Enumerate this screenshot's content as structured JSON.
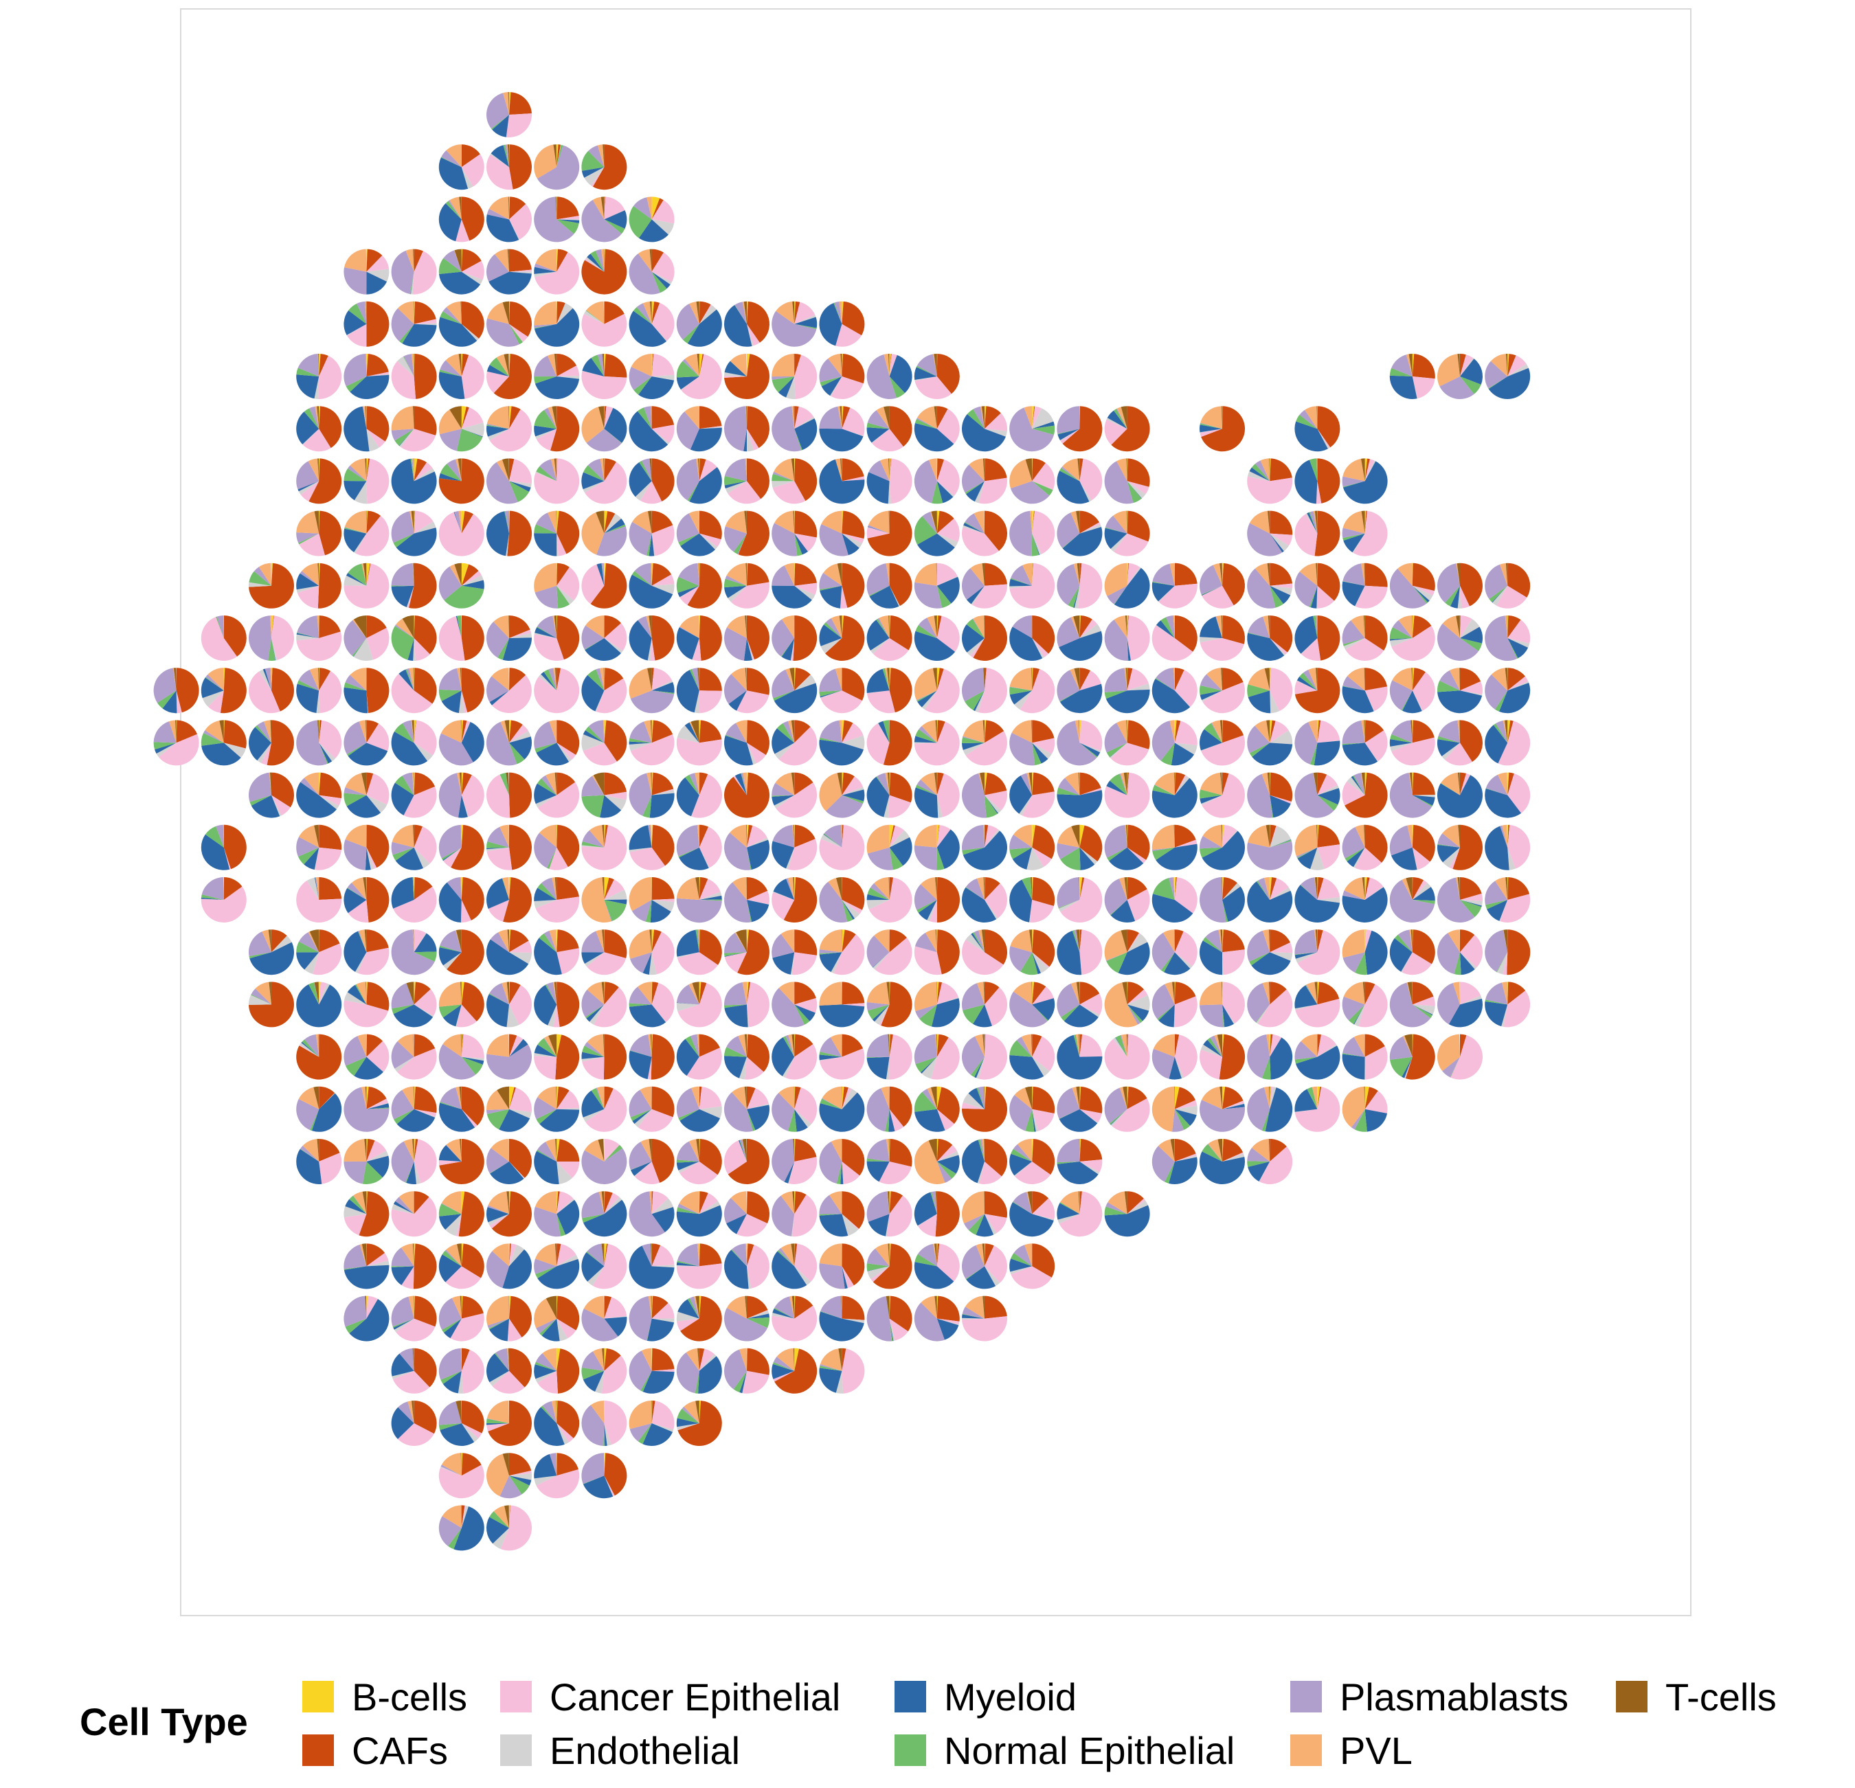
{
  "chart_data": {
    "type": "pie-scatter",
    "description_visible": "Spatial spot grid; each spot is a pie of cell type proportions",
    "legend_title": "Cell Type",
    "legend_position": "bottom",
    "categories": [
      "B-cells",
      "CAFs",
      "Cancer Epithelial",
      "Endothelial",
      "Myeloid",
      "Normal Epithelial",
      "Plasmablasts",
      "PVL",
      "T-cells"
    ],
    "colors": {
      "B-cells": "#F9D423",
      "CAFs": "#CC4A0D",
      "Cancer Epithelial": "#F7BEDC",
      "Endothelial": "#D3D3D3",
      "Myeloid": "#2C68A8",
      "Normal Epithelial": "#70BE6A",
      "Plasmablasts": "#B09ECC",
      "PVL": "#F8AF72",
      "T-cells": "#98621A"
    },
    "grid": false,
    "rows": [
      {
        "row": 0,
        "cols": [
          [
            12,
            12
          ]
        ]
      },
      {
        "row": 1,
        "cols": [
          [
            11,
            14
          ]
        ]
      },
      {
        "row": 2,
        "cols": [
          [
            11,
            15
          ]
        ]
      },
      {
        "row": 3,
        "cols": [
          [
            9,
            15
          ]
        ]
      },
      {
        "row": 4,
        "cols": [
          [
            9,
            19
          ]
        ]
      },
      {
        "row": 5,
        "cols": [
          [
            8,
            21
          ],
          [
            31,
            33
          ]
        ]
      },
      {
        "row": 6,
        "cols": [
          [
            8,
            11
          ],
          [
            12,
            15
          ],
          [
            16,
            25
          ],
          [
            27,
            27
          ],
          [
            29,
            29
          ]
        ]
      },
      {
        "row": 7,
        "cols": [
          [
            8,
            25
          ],
          [
            28,
            30
          ]
        ]
      },
      {
        "row": 8,
        "cols": [
          [
            8,
            25
          ],
          [
            28,
            30
          ]
        ]
      },
      {
        "row": 9,
        "cols": [
          [
            7,
            11
          ],
          [
            13,
            33
          ]
        ]
      },
      {
        "row": 10,
        "cols": [
          [
            6,
            33
          ]
        ]
      },
      {
        "row": 11,
        "cols": [
          [
            5,
            33
          ]
        ]
      },
      {
        "row": 12,
        "cols": [
          [
            5,
            33
          ]
        ]
      },
      {
        "row": 13,
        "cols": [
          [
            7,
            33
          ]
        ]
      },
      {
        "row": 14,
        "cols": [
          [
            6,
            6
          ],
          [
            8,
            33
          ]
        ]
      },
      {
        "row": 15,
        "cols": [
          [
            6,
            6
          ],
          [
            8,
            33
          ]
        ]
      },
      {
        "row": 16,
        "cols": [
          [
            7,
            19
          ],
          [
            20,
            33
          ]
        ]
      },
      {
        "row": 17,
        "cols": [
          [
            7,
            33
          ]
        ]
      },
      {
        "row": 18,
        "cols": [
          [
            8,
            32
          ]
        ]
      },
      {
        "row": 19,
        "cols": [
          [
            8,
            30
          ]
        ]
      },
      {
        "row": 20,
        "cols": [
          [
            8,
            24
          ],
          [
            26,
            28
          ]
        ]
      },
      {
        "row": 21,
        "cols": [
          [
            9,
            25
          ]
        ]
      },
      {
        "row": 22,
        "cols": [
          [
            9,
            23
          ]
        ]
      },
      {
        "row": 23,
        "cols": [
          [
            9,
            22
          ]
        ]
      },
      {
        "row": 24,
        "cols": [
          [
            10,
            19
          ]
        ]
      },
      {
        "row": 25,
        "cols": [
          [
            10,
            16
          ]
        ]
      },
      {
        "row": 26,
        "cols": [
          [
            11,
            14
          ]
        ]
      },
      {
        "row": 27,
        "cols": [
          [
            11,
            12
          ]
        ]
      }
    ]
  },
  "legend": {
    "title": "Cell Type",
    "items": [
      {
        "label": "B-cells",
        "color": "#F9D423"
      },
      {
        "label": "CAFs",
        "color": "#CC4A0D"
      },
      {
        "label": "Cancer Epithelial",
        "color": "#F7BEDC"
      },
      {
        "label": "Endothelial",
        "color": "#D3D3D3"
      },
      {
        "label": "Myeloid",
        "color": "#2C68A8"
      },
      {
        "label": "Normal Epithelial",
        "color": "#70BE6A"
      },
      {
        "label": "Plasmablasts",
        "color": "#B09ECC"
      },
      {
        "label": "PVL",
        "color": "#F8AF72"
      },
      {
        "label": "T-cells",
        "color": "#98621A"
      }
    ]
  }
}
